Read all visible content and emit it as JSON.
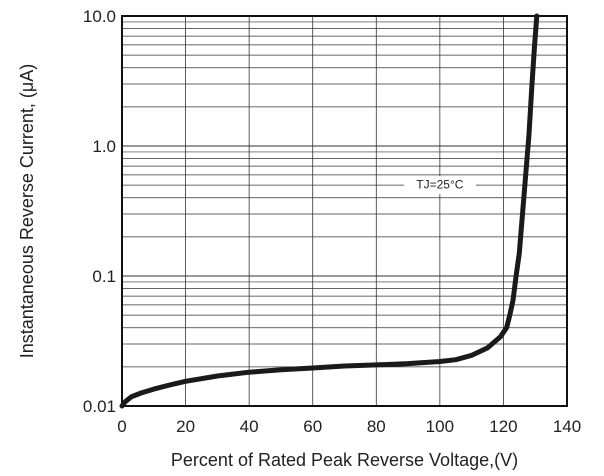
{
  "chart_data": {
    "type": "line",
    "xlabel": "Percent of  Rated Peak Reverse Voltage,(V)",
    "ylabel": "Instantaneous Reverse Current, (μA)",
    "xlim": [
      0,
      140
    ],
    "ylim": [
      0.01,
      10
    ],
    "yscale": "log",
    "grid": true,
    "x_ticks": [
      {
        "value": 0,
        "label": "0"
      },
      {
        "value": 20,
        "label": "20"
      },
      {
        "value": 40,
        "label": "40"
      },
      {
        "value": 60,
        "label": "60"
      },
      {
        "value": 80,
        "label": "80"
      },
      {
        "value": 100,
        "label": "100"
      },
      {
        "value": 120,
        "label": "120"
      },
      {
        "value": 140,
        "label": "140"
      }
    ],
    "y_ticks": [
      {
        "value": 0.01,
        "label": "0.01"
      },
      {
        "value": 0.1,
        "label": "0.1"
      },
      {
        "value": 1,
        "label": "1.0"
      },
      {
        "value": 10,
        "label": "10.0"
      }
    ],
    "annotation": {
      "text": "TJ=25°C",
      "x": 100,
      "y": 0.5
    },
    "series": [
      {
        "color": "#1a1a1a",
        "points": [
          [
            0,
            0.01
          ],
          [
            1,
            0.0108
          ],
          [
            3,
            0.0118
          ],
          [
            6,
            0.0126
          ],
          [
            10,
            0.0135
          ],
          [
            15,
            0.0145
          ],
          [
            20,
            0.0155
          ],
          [
            30,
            0.017
          ],
          [
            40,
            0.0182
          ],
          [
            50,
            0.019
          ],
          [
            60,
            0.0196
          ],
          [
            70,
            0.0203
          ],
          [
            80,
            0.0207
          ],
          [
            90,
            0.0212
          ],
          [
            100,
            0.022
          ],
          [
            105,
            0.0227
          ],
          [
            110,
            0.0245
          ],
          [
            115,
            0.028
          ],
          [
            119,
            0.034
          ],
          [
            121,
            0.04
          ],
          [
            122,
            0.05
          ],
          [
            123,
            0.065
          ],
          [
            124,
            0.1
          ],
          [
            125,
            0.15
          ],
          [
            126,
            0.3
          ],
          [
            127,
            0.6
          ],
          [
            128,
            1.2
          ],
          [
            129,
            3
          ],
          [
            129.8,
            6
          ],
          [
            130.5,
            10
          ]
        ]
      }
    ]
  }
}
